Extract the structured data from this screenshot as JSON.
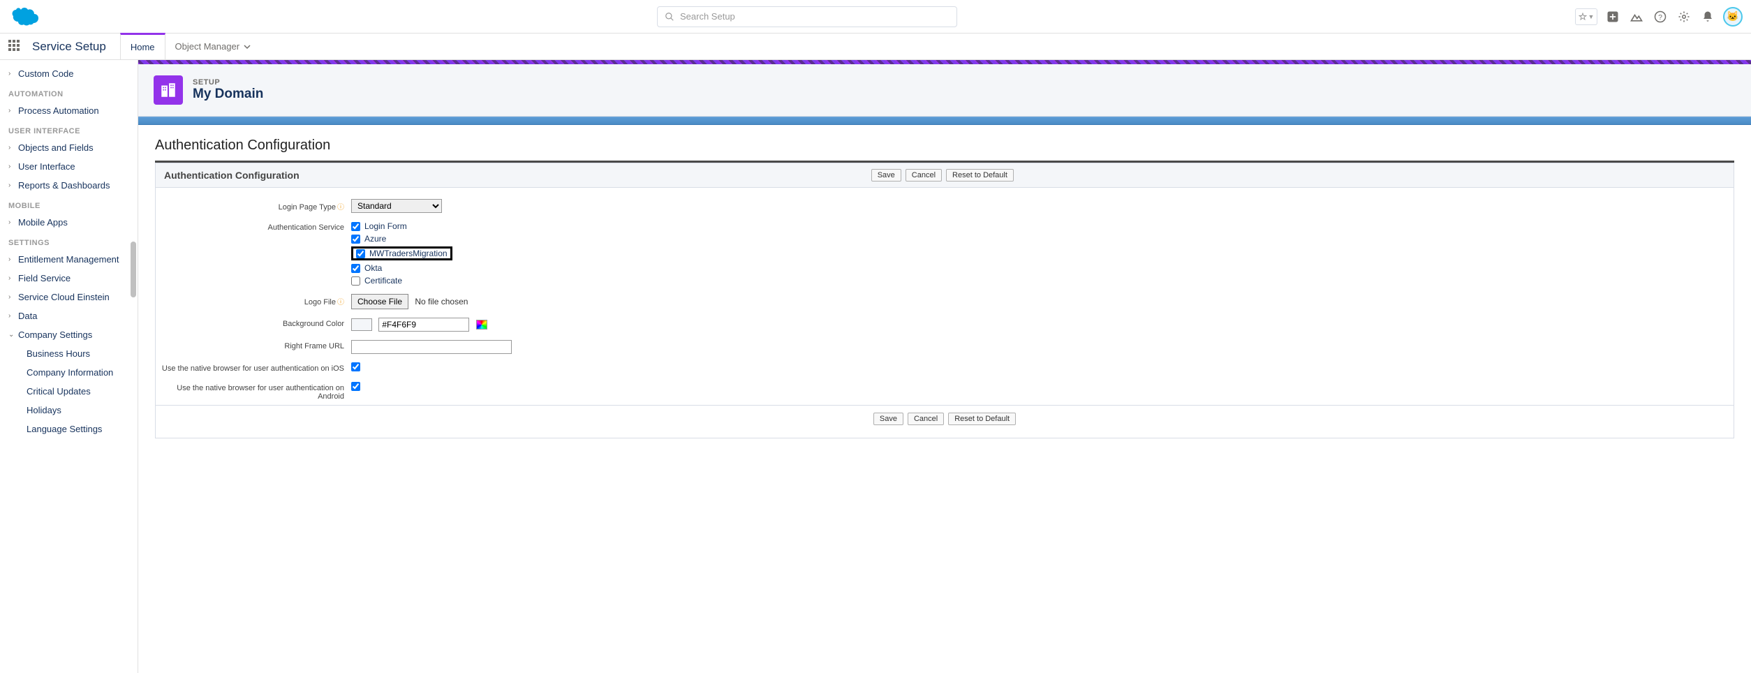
{
  "search": {
    "placeholder": "Search Setup"
  },
  "app": {
    "name": "Service Setup"
  },
  "nav": {
    "home": "Home",
    "objmgr": "Object Manager"
  },
  "sidebar": {
    "items": [
      {
        "type": "item",
        "label": "Custom Code",
        "chev": ">"
      },
      {
        "type": "head",
        "label": "AUTOMATION"
      },
      {
        "type": "item",
        "label": "Process Automation",
        "chev": ">"
      },
      {
        "type": "head",
        "label": "USER INTERFACE"
      },
      {
        "type": "item",
        "label": "Objects and Fields",
        "chev": ">"
      },
      {
        "type": "item",
        "label": "User Interface",
        "chev": ">"
      },
      {
        "type": "item",
        "label": "Reports & Dashboards",
        "chev": ">"
      },
      {
        "type": "head",
        "label": "MOBILE"
      },
      {
        "type": "item",
        "label": "Mobile Apps",
        "chev": ">"
      },
      {
        "type": "head",
        "label": "SETTINGS"
      },
      {
        "type": "item",
        "label": "Entitlement Management",
        "chev": ">"
      },
      {
        "type": "item",
        "label": "Field Service",
        "chev": ">"
      },
      {
        "type": "item",
        "label": "Service Cloud Einstein",
        "chev": ">"
      },
      {
        "type": "item",
        "label": "Data",
        "chev": ">"
      },
      {
        "type": "item",
        "label": "Company Settings",
        "chev": "v"
      },
      {
        "type": "child",
        "label": "Business Hours"
      },
      {
        "type": "child",
        "label": "Company Information"
      },
      {
        "type": "child",
        "label": "Critical Updates"
      },
      {
        "type": "child",
        "label": "Holidays"
      },
      {
        "type": "child",
        "label": "Language Settings"
      }
    ]
  },
  "page": {
    "sub": "SETUP",
    "title": "My Domain"
  },
  "section": {
    "title": "Authentication Configuration"
  },
  "formHeader": {
    "title": "Authentication Configuration"
  },
  "buttons": {
    "save": "Save",
    "cancel": "Cancel",
    "reset": "Reset to Default",
    "chooseFile": "Choose File"
  },
  "form": {
    "loginPageType": {
      "label": "Login Page Type",
      "value": "Standard"
    },
    "authService": {
      "label": "Authentication Service",
      "options": [
        {
          "label": "Login Form",
          "checked": true
        },
        {
          "label": "Azure",
          "checked": true
        },
        {
          "label": "MWTradersMigration",
          "checked": true,
          "highlight": true
        },
        {
          "label": "Okta",
          "checked": true
        },
        {
          "label": "Certificate",
          "checked": false
        }
      ]
    },
    "logoFile": {
      "label": "Logo File",
      "status": "No file chosen"
    },
    "bgColor": {
      "label": "Background Color",
      "value": "#F4F6F9"
    },
    "rightFrame": {
      "label": "Right Frame URL",
      "value": ""
    },
    "iosAuth": {
      "label": "Use the native browser for user authentication on iOS",
      "checked": true
    },
    "androidAuth": {
      "label": "Use the native browser for user authentication on Android",
      "checked": true
    }
  },
  "colors": {
    "brand": "#9333ea",
    "bluebar": "#5B9BD5"
  }
}
